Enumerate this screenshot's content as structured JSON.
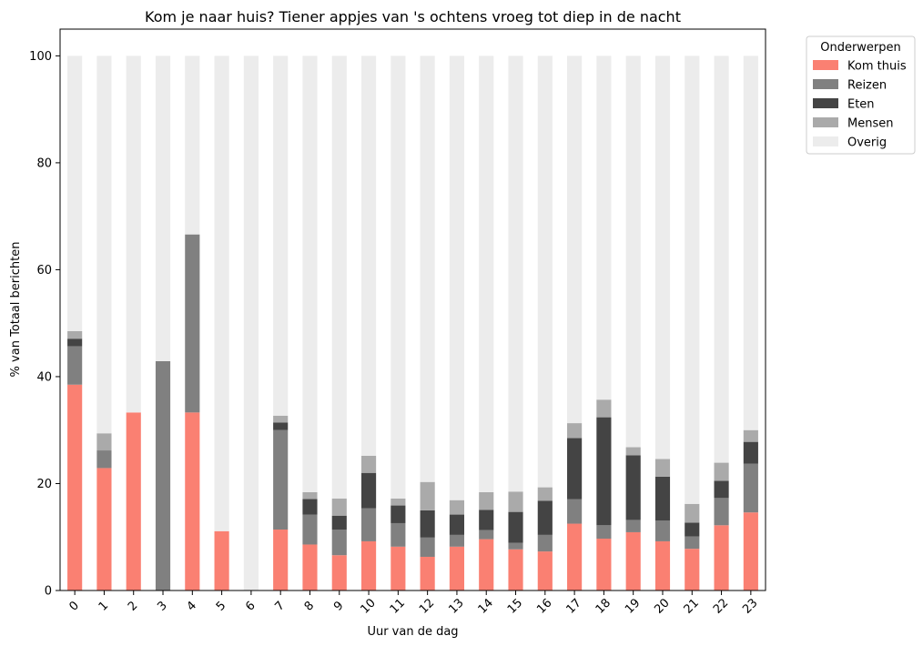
{
  "chart_data": {
    "type": "bar",
    "stacked": true,
    "title": "Kom je naar huis? Tiener appjes van 's ochtens vroeg tot diep in de nacht",
    "xlabel": "Uur van de dag",
    "ylabel": "% van Totaal berichten",
    "ylim": [
      0,
      105
    ],
    "yticks": [
      0,
      20,
      40,
      60,
      80,
      100
    ],
    "grid": false,
    "legend": {
      "title": "Onderwerpen",
      "position": "outside-top-right"
    },
    "categories": [
      "0",
      "1",
      "2",
      "3",
      "4",
      "5",
      "6",
      "7",
      "8",
      "9",
      "10",
      "11",
      "12",
      "13",
      "14",
      "15",
      "16",
      "17",
      "18",
      "19",
      "20",
      "21",
      "22",
      "23"
    ],
    "series": [
      {
        "name": "Kom thuis",
        "color": "#fa8072",
        "values": [
          38.5,
          22.9,
          33.3,
          0,
          33.3,
          11.1,
          0,
          11.4,
          8.6,
          6.6,
          9.2,
          8.2,
          6.3,
          8.2,
          9.6,
          7.7,
          7.3,
          12.5,
          9.7,
          10.9,
          9.2,
          7.8,
          12.2,
          14.6
        ]
      },
      {
        "name": "Reizen",
        "color": "#808080",
        "values": [
          7.2,
          3.3,
          0,
          42.9,
          33.3,
          0,
          0,
          18.6,
          5.6,
          4.8,
          6.2,
          4.4,
          3.6,
          2.2,
          1.7,
          1.2,
          3.1,
          4.6,
          2.5,
          2.3,
          3.9,
          2.3,
          5.1,
          9.1
        ]
      },
      {
        "name": "Eten",
        "color": "#444444",
        "values": [
          1.4,
          0,
          0,
          0,
          0,
          0,
          0,
          1.4,
          2.9,
          2.6,
          6.6,
          3.3,
          5.1,
          3.8,
          3.8,
          5.8,
          6.4,
          11.4,
          20.2,
          12.1,
          8.2,
          2.6,
          3.2,
          4.1
        ]
      },
      {
        "name": "Mensen",
        "color": "#aaaaaa",
        "values": [
          1.4,
          3.2,
          0,
          0,
          0,
          0,
          0,
          1.3,
          1.3,
          3.2,
          3.2,
          1.3,
          5.3,
          2.7,
          3.3,
          3.8,
          2.5,
          2.8,
          3.3,
          1.5,
          3.3,
          3.5,
          3.4,
          2.2
        ]
      },
      {
        "name": "Overig",
        "color": "#ececec",
        "values": [
          51.5,
          70.6,
          66.7,
          57.1,
          33.4,
          88.9,
          100,
          67.3,
          81.6,
          82.8,
          74.8,
          82.8,
          79.7,
          83.1,
          81.6,
          81.5,
          80.7,
          68.7,
          64.3,
          73.2,
          75.4,
          83.8,
          76.1,
          70.0
        ]
      }
    ]
  }
}
